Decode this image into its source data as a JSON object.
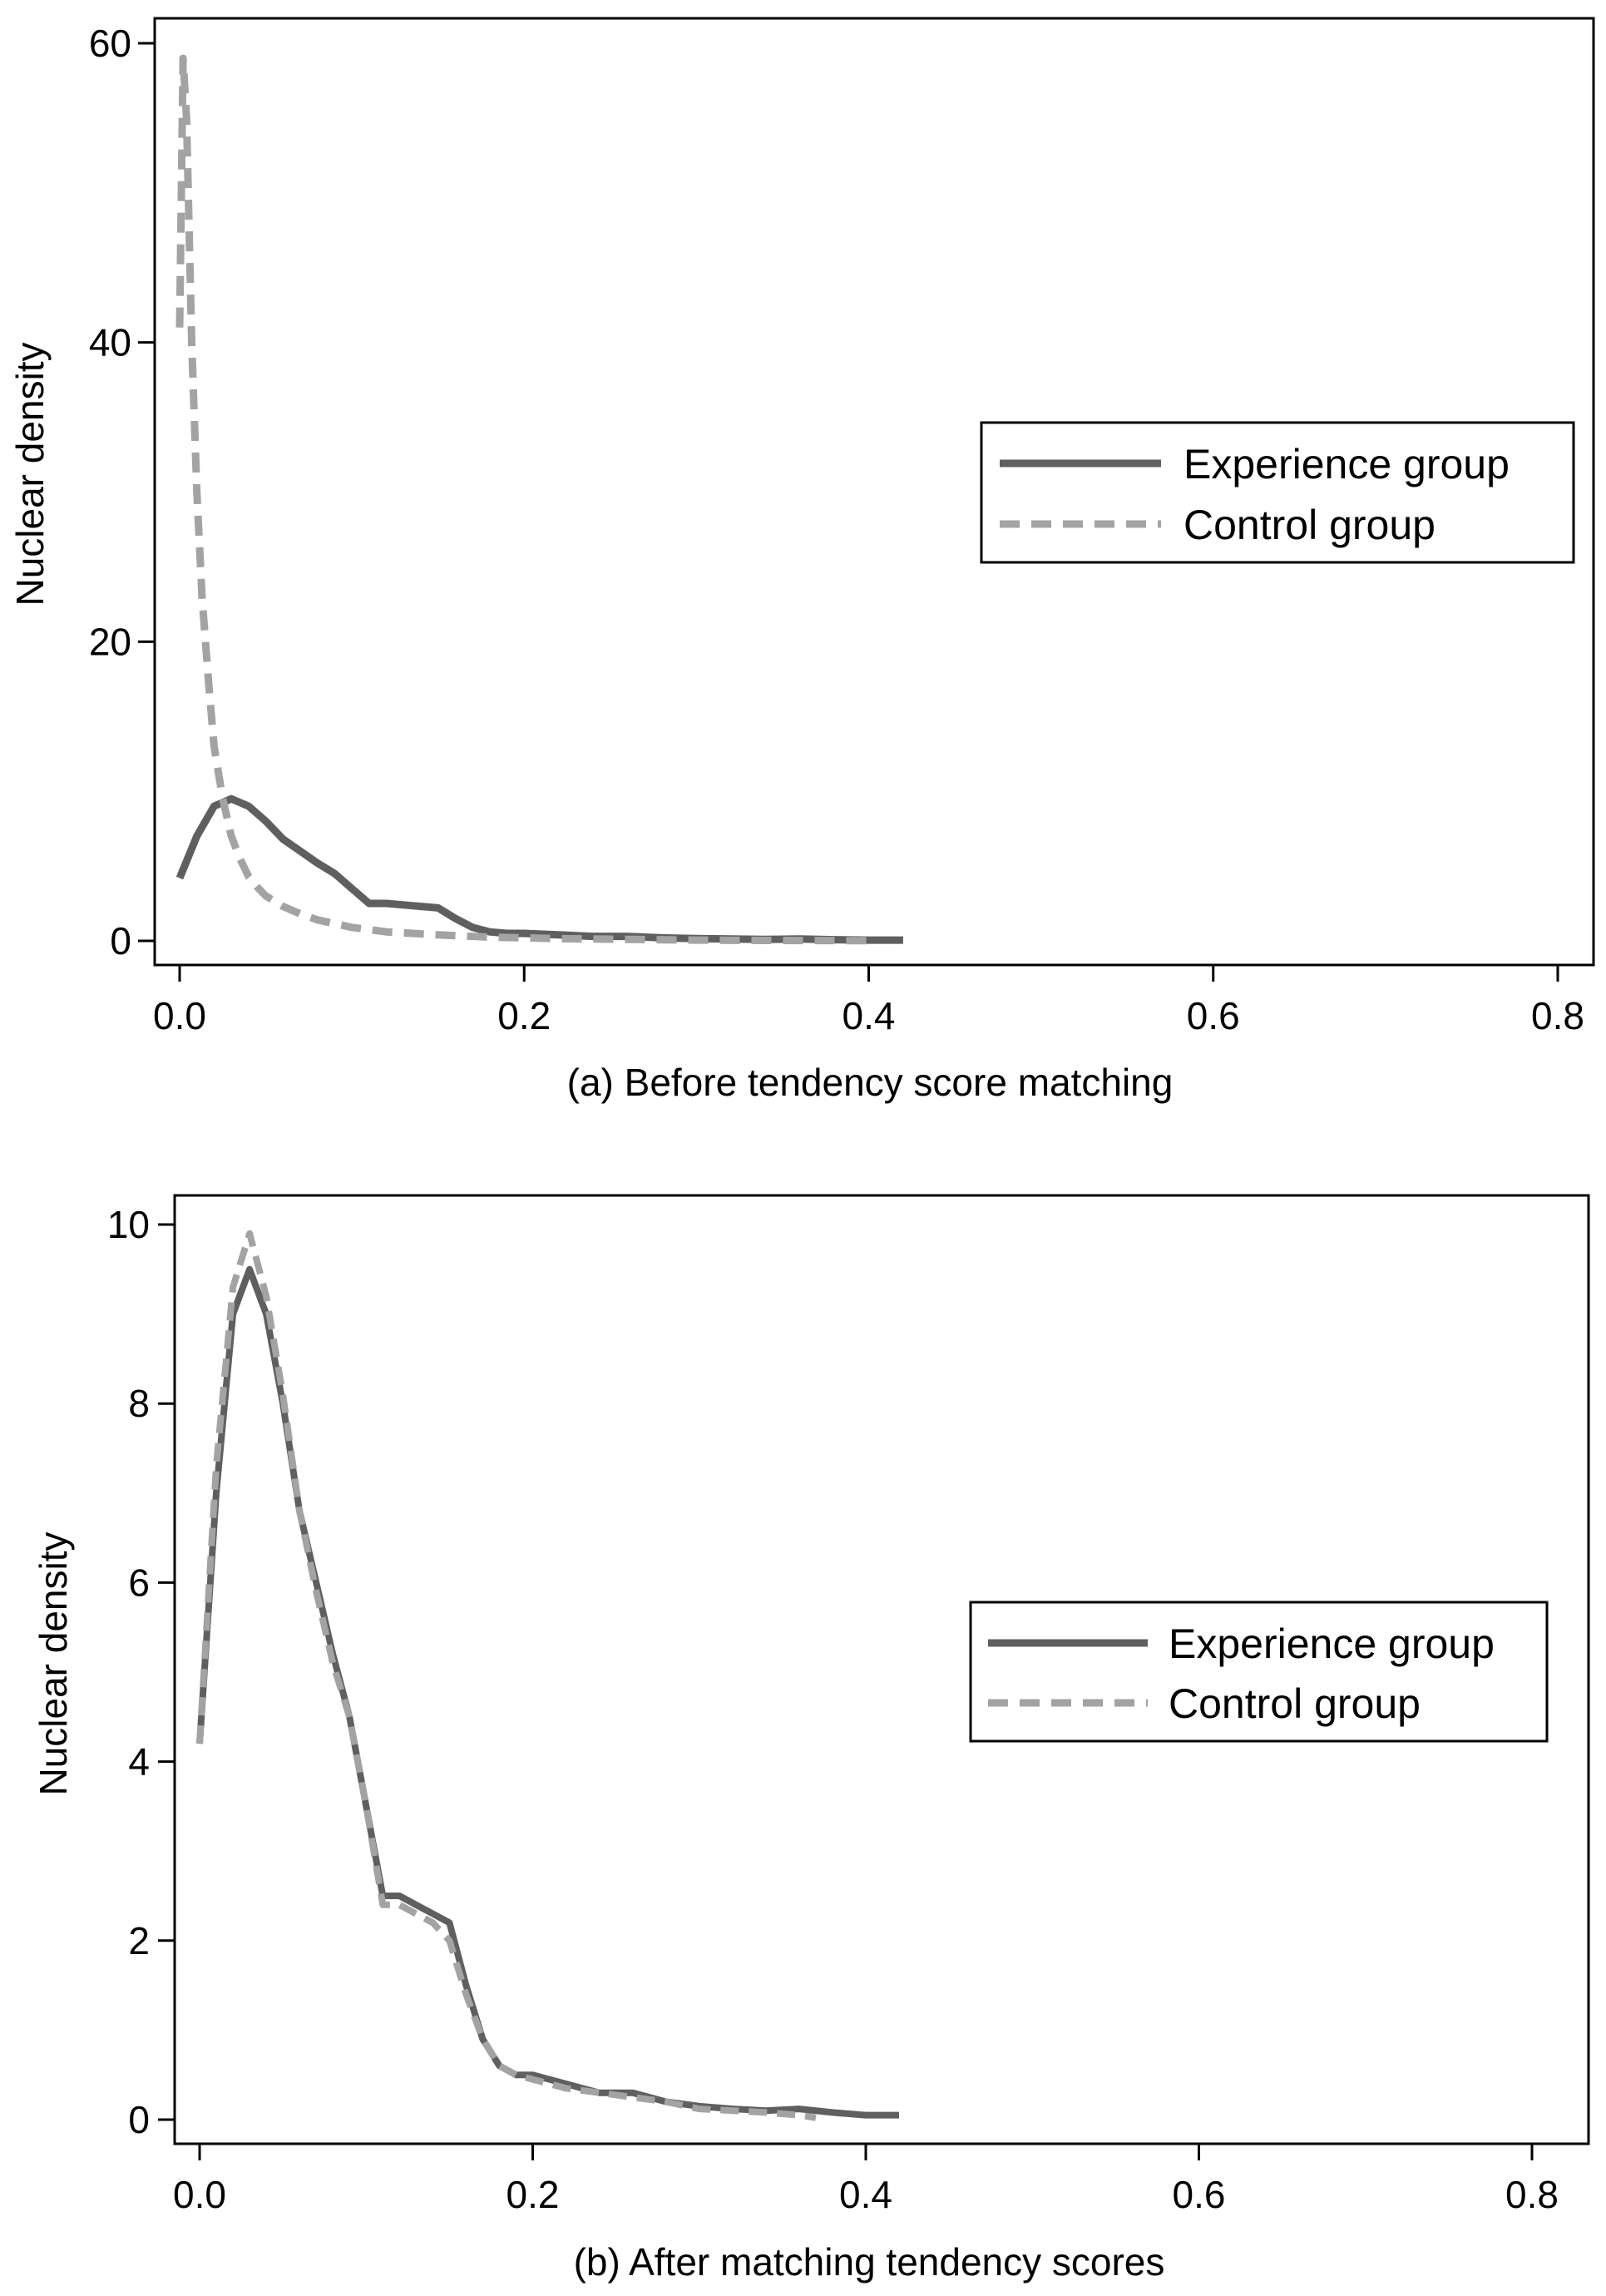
{
  "chart_data": [
    {
      "type": "line",
      "title": "(a) Before tendency score matching",
      "xlabel": "(a) Before tendency score matching",
      "ylabel": "Nuclear density",
      "xlim": [
        0,
        0.8
      ],
      "ylim": [
        0,
        60
      ],
      "xticks": [
        "0.0",
        "0.2",
        "0.4",
        "0.6",
        "0.8"
      ],
      "yticks": [
        "0",
        "20",
        "40",
        "60"
      ],
      "grid": false,
      "legend_position": "center-right",
      "series": [
        {
          "name": "Experience group",
          "style": "solid",
          "color": "#5f5f5f",
          "x": [
            0.0,
            0.01,
            0.02,
            0.03,
            0.04,
            0.05,
            0.06,
            0.07,
            0.08,
            0.09,
            0.1,
            0.11,
            0.12,
            0.13,
            0.14,
            0.15,
            0.16,
            0.17,
            0.18,
            0.19,
            0.2,
            0.22,
            0.24,
            0.26,
            0.28,
            0.3,
            0.32,
            0.34,
            0.36,
            0.38,
            0.4,
            0.42
          ],
          "y": [
            4.2,
            7.0,
            9.0,
            9.5,
            9.0,
            8.0,
            6.8,
            6.0,
            5.2,
            4.5,
            3.5,
            2.5,
            2.5,
            2.4,
            2.3,
            2.2,
            1.5,
            0.9,
            0.6,
            0.5,
            0.5,
            0.4,
            0.3,
            0.3,
            0.2,
            0.15,
            0.12,
            0.1,
            0.12,
            0.08,
            0.05,
            0.05
          ]
        },
        {
          "name": "Control group",
          "style": "dashed",
          "color": "#a3a3a3",
          "x": [
            0.0,
            0.002,
            0.004,
            0.007,
            0.01,
            0.013,
            0.017,
            0.02,
            0.025,
            0.03,
            0.035,
            0.04,
            0.045,
            0.05,
            0.06,
            0.07,
            0.08,
            0.1,
            0.12,
            0.15,
            0.18,
            0.22,
            0.26,
            0.3,
            0.34,
            0.37,
            0.4
          ],
          "y": [
            41.0,
            59.0,
            55.0,
            40.0,
            30.0,
            23.0,
            17.0,
            13.0,
            9.5,
            7.0,
            5.5,
            4.3,
            3.6,
            3.0,
            2.3,
            1.8,
            1.4,
            0.9,
            0.6,
            0.4,
            0.25,
            0.15,
            0.1,
            0.05,
            0.03,
            0.02,
            0.01
          ]
        }
      ]
    },
    {
      "type": "line",
      "title": "(b) After matching tendency scores",
      "xlabel": "(b) After matching tendency scores",
      "ylabel": "Nuclear density",
      "xlim": [
        0,
        0.8
      ],
      "ylim": [
        0,
        10
      ],
      "xticks": [
        "0.0",
        "0.2",
        "0.4",
        "0.6",
        "0.8"
      ],
      "yticks": [
        "0",
        "2",
        "4",
        "6",
        "8",
        "10"
      ],
      "grid": false,
      "legend_position": "center-right",
      "series": [
        {
          "name": "Experience group",
          "style": "solid",
          "color": "#5f5f5f",
          "x": [
            0.0,
            0.01,
            0.02,
            0.03,
            0.04,
            0.05,
            0.06,
            0.07,
            0.08,
            0.09,
            0.1,
            0.11,
            0.12,
            0.13,
            0.14,
            0.15,
            0.16,
            0.17,
            0.18,
            0.19,
            0.2,
            0.22,
            0.24,
            0.26,
            0.28,
            0.3,
            0.32,
            0.34,
            0.36,
            0.38,
            0.4,
            0.42
          ],
          "y": [
            4.2,
            7.0,
            9.0,
            9.5,
            9.0,
            8.0,
            6.8,
            6.0,
            5.2,
            4.5,
            3.5,
            2.5,
            2.5,
            2.4,
            2.3,
            2.2,
            1.5,
            0.9,
            0.6,
            0.5,
            0.5,
            0.4,
            0.3,
            0.3,
            0.2,
            0.15,
            0.12,
            0.1,
            0.12,
            0.08,
            0.05,
            0.05
          ]
        },
        {
          "name": "Control group",
          "style": "dashed",
          "color": "#a3a3a3",
          "x": [
            0.0,
            0.01,
            0.02,
            0.03,
            0.04,
            0.05,
            0.06,
            0.07,
            0.08,
            0.09,
            0.1,
            0.11,
            0.12,
            0.13,
            0.14,
            0.15,
            0.16,
            0.17,
            0.18,
            0.19,
            0.2,
            0.22,
            0.24,
            0.26,
            0.28,
            0.3,
            0.32,
            0.34,
            0.36,
            0.37
          ],
          "y": [
            4.2,
            7.3,
            9.3,
            9.9,
            9.2,
            8.1,
            6.8,
            5.9,
            5.1,
            4.5,
            3.5,
            2.4,
            2.4,
            2.3,
            2.2,
            2.0,
            1.4,
            0.9,
            0.6,
            0.5,
            0.45,
            0.35,
            0.3,
            0.25,
            0.2,
            0.12,
            0.1,
            0.08,
            0.05,
            0.02
          ]
        }
      ]
    }
  ]
}
